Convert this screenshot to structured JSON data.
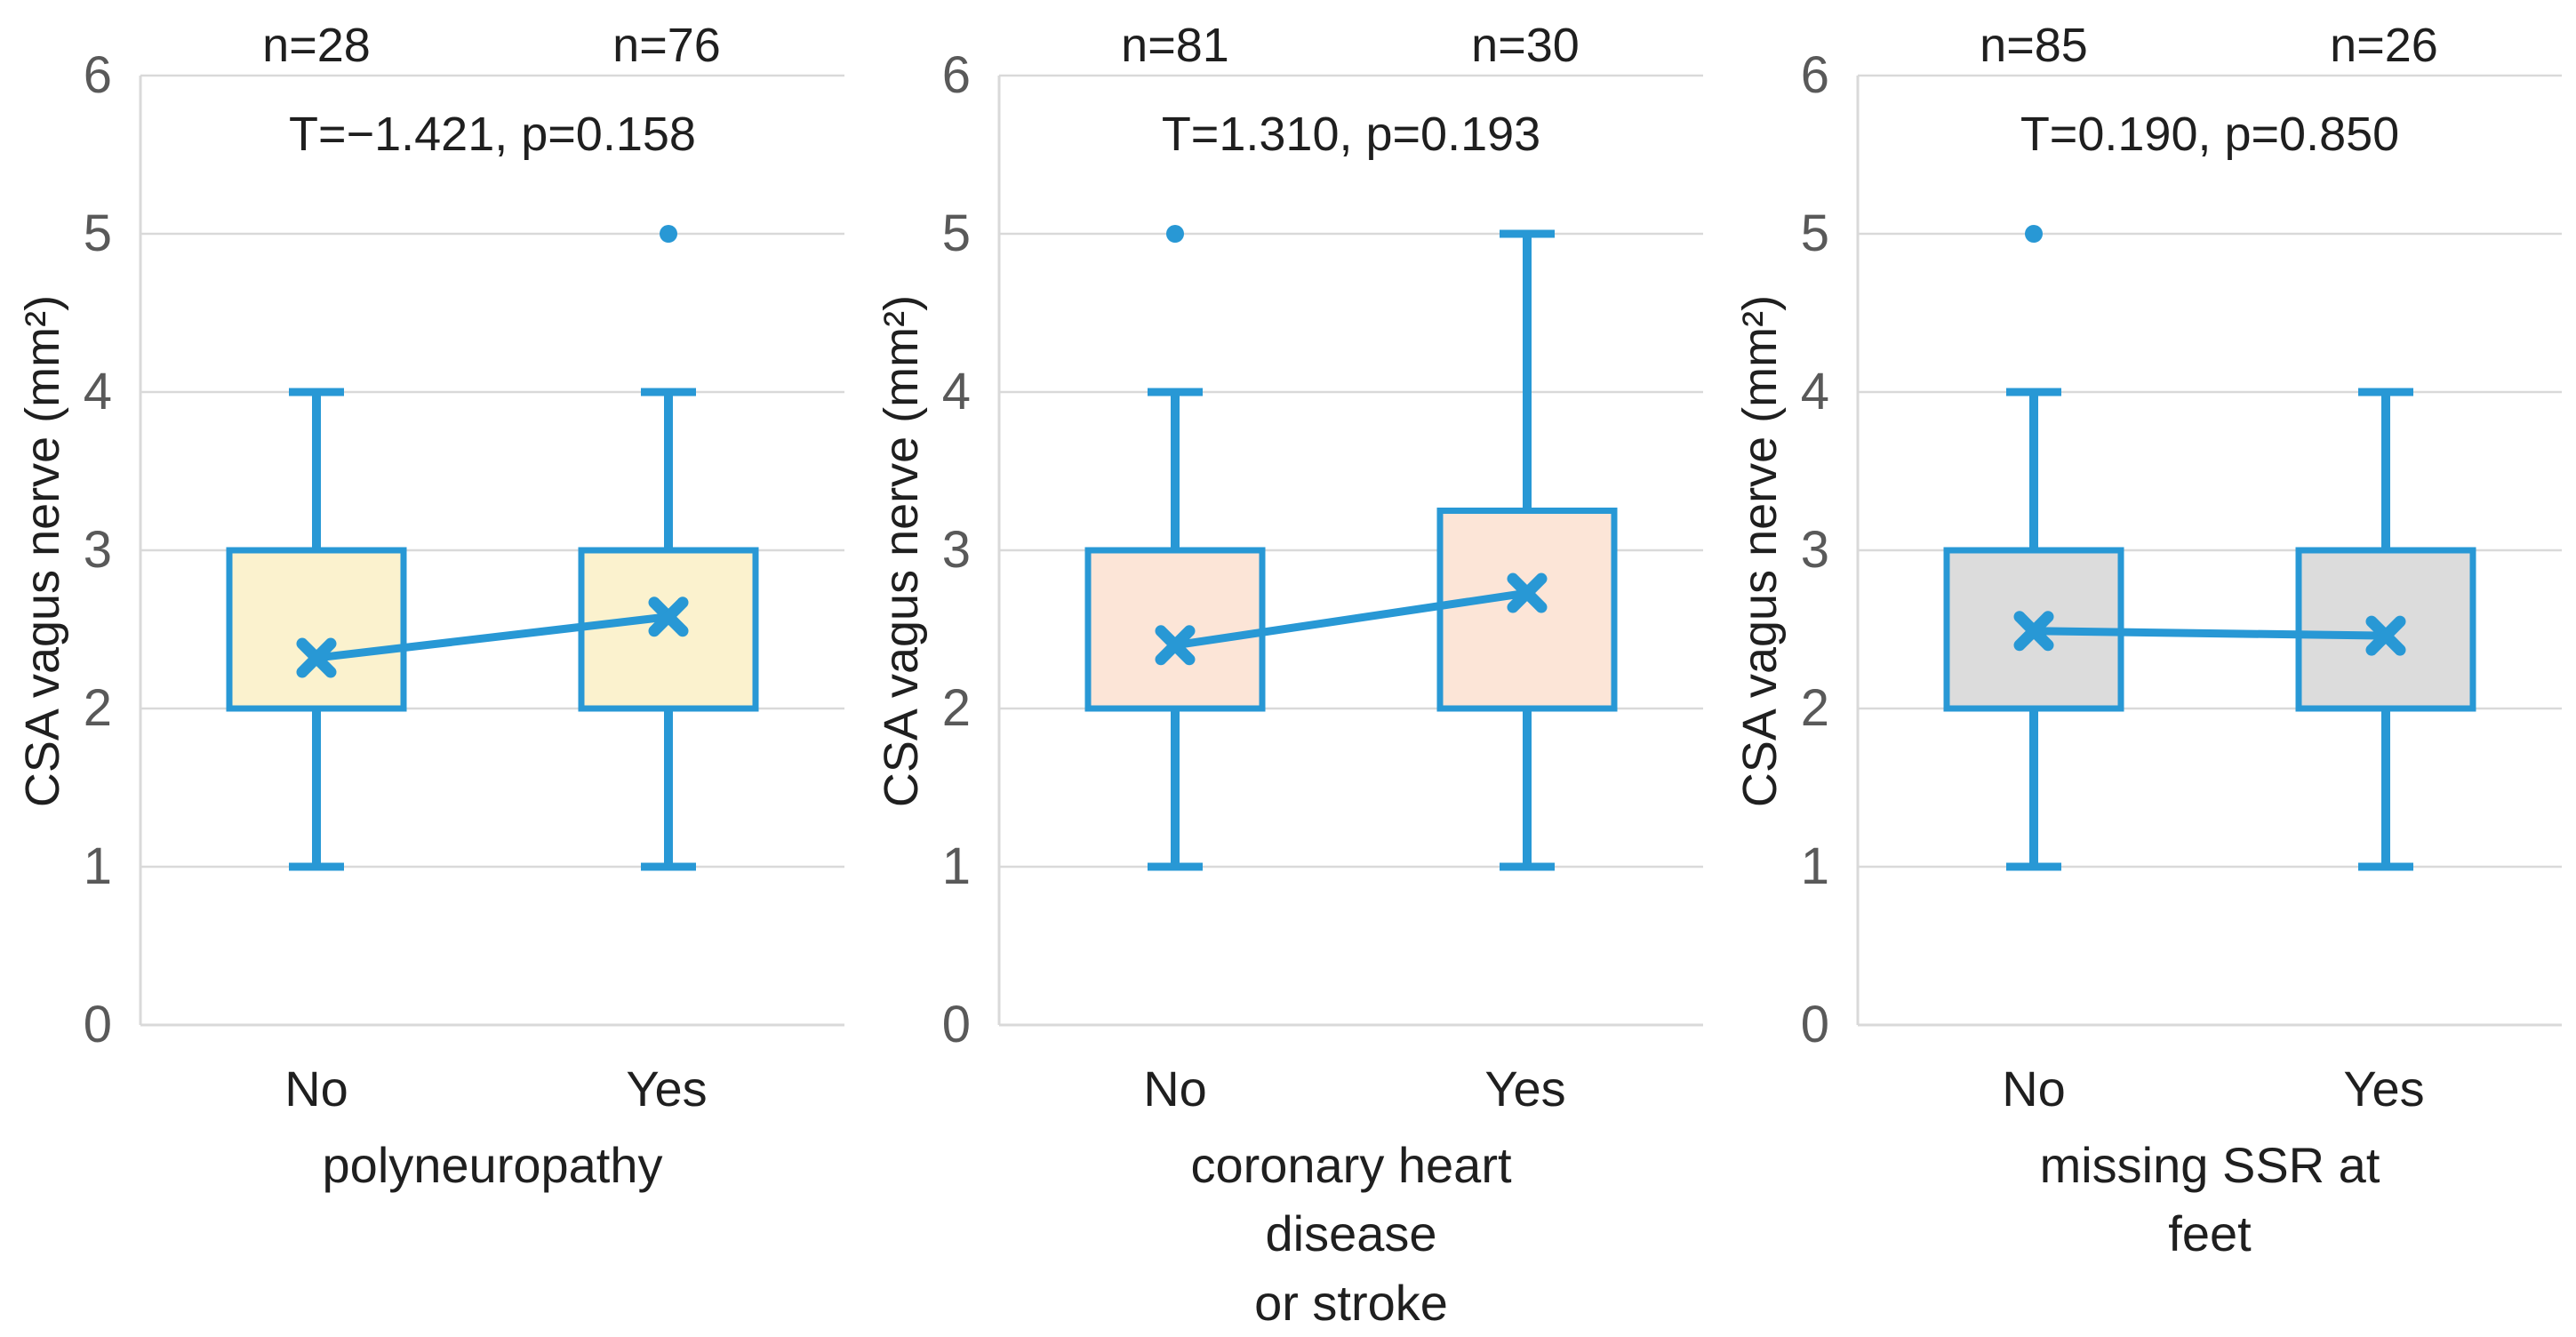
{
  "style": {
    "box_stroke": "#2898D5",
    "grid_color": "#D9D9D9",
    "axis_color": "#D9D9D9",
    "tick_label_color": "#595959",
    "text_color": "#1f1f1f"
  },
  "chart_data": [
    {
      "type": "boxplot",
      "title": "",
      "ylabel": "CSA vagus nerve (mm²)",
      "xlabel": "polyneuropathy",
      "ylim": [
        0,
        6
      ],
      "ytick_step": 1,
      "grid": true,
      "categories": [
        "No",
        "Yes"
      ],
      "n_labels": [
        "n=28",
        "n=76"
      ],
      "stats_label": "T=−1.421, p=0.158",
      "box_fill": "#FBF2CE",
      "boxes": [
        {
          "category": "No",
          "n": 28,
          "whisker_low": 1,
          "q1": 2,
          "q3": 3,
          "whisker_high": 4,
          "mean": 2.32,
          "outliers": []
        },
        {
          "category": "Yes",
          "n": 76,
          "whisker_low": 1,
          "q1": 2,
          "q3": 3,
          "whisker_high": 4,
          "mean": 2.58,
          "outliers": [
            5
          ]
        }
      ]
    },
    {
      "type": "boxplot",
      "title": "",
      "ylabel": "CSA vagus nerve (mm²)",
      "xlabel": "coronary heart disease\nor stroke",
      "ylim": [
        0,
        6
      ],
      "ytick_step": 1,
      "grid": true,
      "categories": [
        "No",
        "Yes"
      ],
      "n_labels": [
        "n=81",
        "n=30"
      ],
      "stats_label": "T=1.310, p=0.193",
      "box_fill": "#FCE5D7",
      "boxes": [
        {
          "category": "No",
          "n": 81,
          "whisker_low": 1,
          "q1": 2,
          "q3": 3,
          "whisker_high": 4,
          "mean": 2.4,
          "outliers": [
            5
          ]
        },
        {
          "category": "Yes",
          "n": 30,
          "whisker_low": 1,
          "q1": 2,
          "q3": 3.25,
          "whisker_high": 5,
          "mean": 2.73,
          "outliers": []
        }
      ]
    },
    {
      "type": "boxplot",
      "title": "",
      "ylabel": "CSA vagus nerve (mm²)",
      "xlabel": "missing SSR at feet",
      "ylim": [
        0,
        6
      ],
      "ytick_step": 1,
      "grid": true,
      "categories": [
        "No",
        "Yes"
      ],
      "n_labels": [
        "n=85",
        "n=26"
      ],
      "stats_label": "T=0.190, p=0.850",
      "box_fill": "#DCDCDC",
      "boxes": [
        {
          "category": "No",
          "n": 85,
          "whisker_low": 1,
          "q1": 2,
          "q3": 3,
          "whisker_high": 4,
          "mean": 2.49,
          "outliers": [
            5
          ]
        },
        {
          "category": "Yes",
          "n": 26,
          "whisker_low": 1,
          "q1": 2,
          "q3": 3,
          "whisker_high": 4,
          "mean": 2.46,
          "outliers": []
        }
      ]
    }
  ]
}
